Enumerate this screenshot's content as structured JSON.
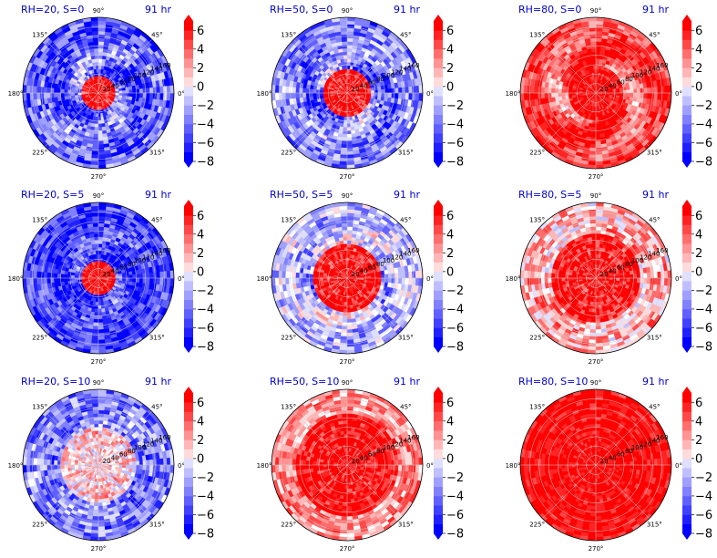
{
  "figure": {
    "colormap": "bwr",
    "colors": {
      "low": "#0000ff",
      "mid": "#ffffff",
      "high": "#ff0000"
    },
    "colorbar": {
      "ticks": [
        "6",
        "4",
        "2",
        "0",
        "−2",
        "−4",
        "−6",
        "−8"
      ],
      "min": -8,
      "max": 7,
      "extend": "both"
    }
  },
  "chart_data": [
    {
      "type": "heatmap",
      "projection": "polar",
      "title": "RH=20, S=0",
      "time_label": "91 hr",
      "theta_labels": [
        "90°",
        "45°",
        "0°",
        "315°",
        "270°",
        "225°",
        "180°",
        "135°"
      ],
      "r_labels": [
        "20",
        "40",
        "60",
        "80",
        "100",
        "120",
        "140",
        "160"
      ],
      "pattern": {
        "core_value": 7,
        "core_radius": 0.25,
        "outer_value": -5,
        "spiral_amp": 4,
        "noise": 0.6
      }
    },
    {
      "type": "heatmap",
      "projection": "polar",
      "title": "RH=50, S=0",
      "time_label": "91 hr",
      "theta_labels": [
        "90°",
        "45°",
        "0°",
        "315°",
        "270°",
        "225°",
        "180°",
        "135°"
      ],
      "r_labels": [
        "20",
        "40",
        "60",
        "80",
        "100",
        "120",
        "140",
        "160"
      ],
      "pattern": {
        "core_value": 7,
        "core_radius": 0.3,
        "outer_value": -4,
        "spiral_amp": 4,
        "noise": 0.6
      }
    },
    {
      "type": "heatmap",
      "projection": "polar",
      "title": "RH=80, S=0",
      "time_label": "91 hr",
      "theta_labels": [
        "90°",
        "45°",
        "0°",
        "315°",
        "270°",
        "225°",
        "180°",
        "135°"
      ],
      "r_labels": [
        "20",
        "40",
        "60",
        "80",
        "100",
        "120",
        "140",
        "160"
      ],
      "pattern": {
        "core_value": 7,
        "core_radius": 0.35,
        "outer_value": 5,
        "spiral_amp": 6,
        "noise": 0.4
      }
    },
    {
      "type": "heatmap",
      "projection": "polar",
      "title": "RH=20, S=5",
      "time_label": "91 hr",
      "theta_labels": [
        "90°",
        "45°",
        "0°",
        "315°",
        "270°",
        "225°",
        "180°",
        "135°"
      ],
      "r_labels": [
        "20",
        "40",
        "60",
        "80",
        "100",
        "120",
        "140",
        "160"
      ],
      "pattern": {
        "core_value": 7,
        "core_radius": 0.22,
        "outer_value": -6,
        "spiral_amp": 3,
        "noise": 0.5
      }
    },
    {
      "type": "heatmap",
      "projection": "polar",
      "title": "RH=50, S=5",
      "time_label": "91 hr",
      "theta_labels": [
        "90°",
        "45°",
        "0°",
        "315°",
        "270°",
        "225°",
        "180°",
        "135°"
      ],
      "r_labels": [
        "20",
        "40",
        "60",
        "80",
        "100",
        "120",
        "140",
        "160"
      ],
      "pattern": {
        "core_value": 7,
        "core_radius": 0.45,
        "outer_value": -2,
        "spiral_amp": 4,
        "noise": 0.6
      }
    },
    {
      "type": "heatmap",
      "projection": "polar",
      "title": "RH=80, S=5",
      "time_label": "91 hr",
      "theta_labels": [
        "90°",
        "45°",
        "0°",
        "315°",
        "270°",
        "225°",
        "180°",
        "135°"
      ],
      "r_labels": [
        "20",
        "40",
        "60",
        "80",
        "100",
        "120",
        "140",
        "160"
      ],
      "pattern": {
        "core_value": 7,
        "core_radius": 0.6,
        "outer_value": 2,
        "spiral_amp": 3,
        "noise": 0.6
      }
    },
    {
      "type": "heatmap",
      "projection": "polar",
      "title": "RH=20, S=10",
      "time_label": "91 hr",
      "theta_labels": [
        "90°",
        "45°",
        "0°",
        "315°",
        "270°",
        "225°",
        "180°",
        "135°"
      ],
      "r_labels": [
        "20",
        "40",
        "60",
        "80",
        "100",
        "120",
        "140",
        "160"
      ],
      "pattern": {
        "core_value": 1,
        "core_radius": 0.5,
        "outer_value": -4,
        "spiral_amp": 2,
        "noise": 0.6
      }
    },
    {
      "type": "heatmap",
      "projection": "polar",
      "title": "RH=50, S=10",
      "time_label": "91 hr",
      "theta_labels": [
        "90°",
        "45°",
        "0°",
        "315°",
        "270°",
        "225°",
        "180°",
        "135°"
      ],
      "r_labels": [
        "20",
        "40",
        "60",
        "80",
        "100",
        "120",
        "140",
        "160"
      ],
      "pattern": {
        "core_value": 7,
        "core_radius": 0.7,
        "outer_value": 3,
        "spiral_amp": 3,
        "noise": 0.5
      }
    },
    {
      "type": "heatmap",
      "projection": "polar",
      "title": "RH=80, S=10",
      "time_label": "91 hr",
      "theta_labels": [
        "90°",
        "45°",
        "0°",
        "315°",
        "270°",
        "225°",
        "180°",
        "135°"
      ],
      "r_labels": [
        "20",
        "40",
        "60",
        "80",
        "100",
        "120",
        "140",
        "160"
      ],
      "pattern": {
        "core_value": 7,
        "core_radius": 0.95,
        "outer_value": 6,
        "spiral_amp": 1,
        "noise": 0.3
      }
    }
  ]
}
